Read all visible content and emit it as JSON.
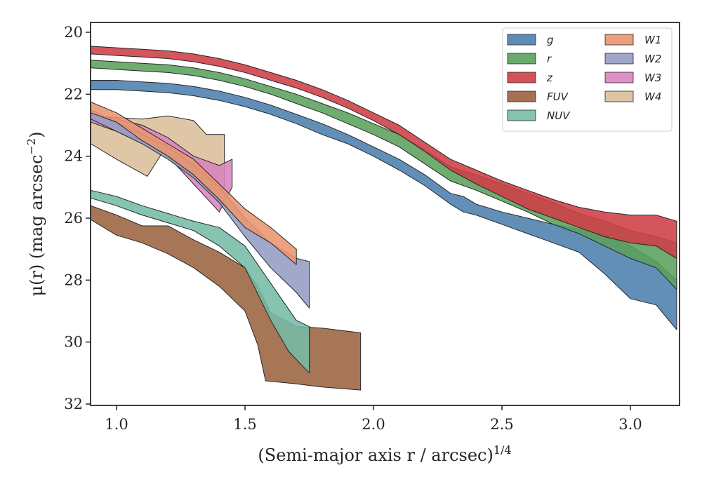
{
  "chart_data": {
    "type": "area",
    "xlabel": "(Semi-major axis r / arcsec)",
    "xlabel_exponent": "1/4",
    "ylabel": "μ(r) (mag arcsec",
    "ylabel_exponent": "−2",
    "xlim": [
      0.9,
      3.18
    ],
    "ylim": [
      32,
      19.75
    ],
    "y_inverted": true,
    "xticks": [
      1.0,
      1.5,
      2.0,
      2.5,
      3.0
    ],
    "xtick_labels": [
      "1.0",
      "1.5",
      "2.0",
      "2.5",
      "3.0"
    ],
    "yticks": [
      20,
      22,
      24,
      26,
      28,
      30,
      32
    ],
    "ytick_labels": [
      "20",
      "22",
      "24",
      "26",
      "28",
      "30",
      "32"
    ],
    "grid": false,
    "legend": {
      "position": "top-right",
      "columns": 2
    },
    "series": [
      {
        "name": "g",
        "color": "#4c7fae",
        "upper": [
          [
            0.9,
            21.55
          ],
          [
            1.0,
            21.55
          ],
          [
            1.1,
            21.6
          ],
          [
            1.2,
            21.65
          ],
          [
            1.3,
            21.75
          ],
          [
            1.4,
            21.9
          ],
          [
            1.5,
            22.1
          ],
          [
            1.6,
            22.35
          ],
          [
            1.7,
            22.65
          ],
          [
            1.8,
            22.95
          ],
          [
            1.9,
            23.3
          ],
          [
            2.0,
            23.7
          ],
          [
            2.1,
            24.1
          ],
          [
            2.2,
            24.6
          ],
          [
            2.3,
            25.2
          ],
          [
            2.35,
            25.3
          ],
          [
            2.4,
            25.55
          ],
          [
            2.5,
            25.8
          ],
          [
            2.6,
            26.0
          ],
          [
            2.7,
            26.2
          ],
          [
            2.8,
            26.35
          ],
          [
            2.9,
            26.5
          ],
          [
            3.0,
            26.9
          ],
          [
            3.1,
            27.4
          ],
          [
            3.18,
            28.0
          ]
        ],
        "lower": [
          [
            0.9,
            21.85
          ],
          [
            1.0,
            21.85
          ],
          [
            1.1,
            21.9
          ],
          [
            1.2,
            21.95
          ],
          [
            1.3,
            22.05
          ],
          [
            1.4,
            22.2
          ],
          [
            1.5,
            22.4
          ],
          [
            1.6,
            22.65
          ],
          [
            1.7,
            22.95
          ],
          [
            1.8,
            23.3
          ],
          [
            1.9,
            23.6
          ],
          [
            2.0,
            24.0
          ],
          [
            2.1,
            24.45
          ],
          [
            2.2,
            24.95
          ],
          [
            2.3,
            25.55
          ],
          [
            2.35,
            25.8
          ],
          [
            2.4,
            25.9
          ],
          [
            2.5,
            26.2
          ],
          [
            2.6,
            26.5
          ],
          [
            2.7,
            26.8
          ],
          [
            2.8,
            27.1
          ],
          [
            2.9,
            27.8
          ],
          [
            3.0,
            28.6
          ],
          [
            3.1,
            28.8
          ],
          [
            3.18,
            29.6
          ]
        ]
      },
      {
        "name": "r",
        "color": "#5aa15c",
        "upper": [
          [
            0.9,
            20.9
          ],
          [
            1.0,
            20.95
          ],
          [
            1.1,
            21.0
          ],
          [
            1.2,
            21.05
          ],
          [
            1.3,
            21.15
          ],
          [
            1.4,
            21.3
          ],
          [
            1.5,
            21.5
          ],
          [
            1.6,
            21.75
          ],
          [
            1.7,
            22.0
          ],
          [
            1.8,
            22.3
          ],
          [
            1.9,
            22.6
          ],
          [
            2.0,
            22.95
          ],
          [
            2.1,
            23.3
          ],
          [
            2.2,
            23.8
          ],
          [
            2.3,
            24.35
          ],
          [
            2.4,
            24.6
          ],
          [
            2.5,
            24.9
          ],
          [
            2.6,
            25.2
          ],
          [
            2.7,
            25.5
          ],
          [
            2.8,
            25.85
          ],
          [
            2.9,
            26.1
          ],
          [
            3.0,
            26.4
          ],
          [
            3.1,
            26.6
          ],
          [
            3.18,
            26.8
          ]
        ],
        "lower": [
          [
            0.9,
            21.15
          ],
          [
            1.0,
            21.2
          ],
          [
            1.1,
            21.25
          ],
          [
            1.2,
            21.3
          ],
          [
            1.3,
            21.4
          ],
          [
            1.4,
            21.55
          ],
          [
            1.5,
            21.75
          ],
          [
            1.6,
            22.0
          ],
          [
            1.7,
            22.3
          ],
          [
            1.8,
            22.6
          ],
          [
            1.9,
            22.95
          ],
          [
            2.0,
            23.3
          ],
          [
            2.1,
            23.7
          ],
          [
            2.2,
            24.25
          ],
          [
            2.3,
            24.8
          ],
          [
            2.4,
            25.1
          ],
          [
            2.5,
            25.45
          ],
          [
            2.6,
            25.8
          ],
          [
            2.7,
            26.2
          ],
          [
            2.8,
            26.5
          ],
          [
            2.9,
            26.9
          ],
          [
            3.0,
            27.3
          ],
          [
            3.1,
            27.6
          ],
          [
            3.18,
            28.3
          ]
        ]
      },
      {
        "name": "z",
        "color": "#cf3e45",
        "upper": [
          [
            0.9,
            20.45
          ],
          [
            1.0,
            20.5
          ],
          [
            1.1,
            20.55
          ],
          [
            1.2,
            20.6
          ],
          [
            1.3,
            20.7
          ],
          [
            1.4,
            20.85
          ],
          [
            1.5,
            21.05
          ],
          [
            1.6,
            21.3
          ],
          [
            1.7,
            21.55
          ],
          [
            1.8,
            21.85
          ],
          [
            1.9,
            22.2
          ],
          [
            2.0,
            22.6
          ],
          [
            2.1,
            23.0
          ],
          [
            2.2,
            23.55
          ],
          [
            2.3,
            24.1
          ],
          [
            2.4,
            24.45
          ],
          [
            2.5,
            24.8
          ],
          [
            2.6,
            25.1
          ],
          [
            2.7,
            25.4
          ],
          [
            2.8,
            25.65
          ],
          [
            2.9,
            25.8
          ],
          [
            3.0,
            25.9
          ],
          [
            3.1,
            25.9
          ],
          [
            3.18,
            26.1
          ]
        ],
        "lower": [
          [
            0.9,
            20.7
          ],
          [
            1.0,
            20.75
          ],
          [
            1.1,
            20.8
          ],
          [
            1.2,
            20.85
          ],
          [
            1.3,
            20.95
          ],
          [
            1.4,
            21.1
          ],
          [
            1.5,
            21.3
          ],
          [
            1.6,
            21.55
          ],
          [
            1.7,
            21.8
          ],
          [
            1.8,
            22.1
          ],
          [
            1.9,
            22.45
          ],
          [
            2.0,
            22.85
          ],
          [
            2.1,
            23.3
          ],
          [
            2.2,
            23.85
          ],
          [
            2.3,
            24.45
          ],
          [
            2.4,
            24.9
          ],
          [
            2.5,
            25.3
          ],
          [
            2.6,
            25.7
          ],
          [
            2.7,
            26.0
          ],
          [
            2.8,
            26.3
          ],
          [
            2.9,
            26.6
          ],
          [
            3.0,
            26.8
          ],
          [
            3.1,
            26.9
          ],
          [
            3.18,
            27.3
          ]
        ]
      },
      {
        "name": "FUV",
        "color": "#9a6340",
        "upper": [
          [
            0.9,
            25.6
          ],
          [
            1.0,
            25.9
          ],
          [
            1.1,
            26.25
          ],
          [
            1.2,
            26.25
          ],
          [
            1.3,
            26.7
          ],
          [
            1.4,
            27.1
          ],
          [
            1.5,
            27.6
          ],
          [
            1.55,
            28.2
          ],
          [
            1.6,
            29.05
          ],
          [
            1.7,
            29.5
          ],
          [
            1.8,
            29.55
          ],
          [
            1.95,
            29.7
          ]
        ],
        "lower": [
          [
            0.9,
            26.05
          ],
          [
            1.0,
            26.55
          ],
          [
            1.1,
            26.8
          ],
          [
            1.2,
            27.15
          ],
          [
            1.3,
            27.6
          ],
          [
            1.4,
            28.2
          ],
          [
            1.5,
            29.0
          ],
          [
            1.55,
            30.1
          ],
          [
            1.58,
            31.25
          ],
          [
            1.7,
            31.35
          ],
          [
            1.8,
            31.45
          ],
          [
            1.95,
            31.55
          ]
        ]
      },
      {
        "name": "NUV",
        "color": "#75bca6",
        "upper": [
          [
            0.9,
            25.1
          ],
          [
            1.0,
            25.3
          ],
          [
            1.1,
            25.6
          ],
          [
            1.2,
            25.85
          ],
          [
            1.3,
            26.1
          ],
          [
            1.4,
            26.3
          ],
          [
            1.5,
            26.9
          ],
          [
            1.6,
            28.1
          ],
          [
            1.7,
            29.3
          ],
          [
            1.75,
            29.5
          ]
        ],
        "lower": [
          [
            0.9,
            25.35
          ],
          [
            1.0,
            25.6
          ],
          [
            1.1,
            25.9
          ],
          [
            1.2,
            26.15
          ],
          [
            1.3,
            26.4
          ],
          [
            1.4,
            26.9
          ],
          [
            1.5,
            27.6
          ],
          [
            1.6,
            29.3
          ],
          [
            1.67,
            30.3
          ],
          [
            1.75,
            31.0
          ]
        ]
      },
      {
        "name": "W1",
        "color": "#e9956f",
        "upper": [
          [
            0.9,
            22.25
          ],
          [
            1.0,
            22.6
          ],
          [
            1.1,
            23.1
          ],
          [
            1.2,
            23.6
          ],
          [
            1.3,
            24.1
          ],
          [
            1.4,
            24.9
          ],
          [
            1.5,
            25.7
          ],
          [
            1.6,
            26.3
          ],
          [
            1.7,
            27.0
          ]
        ],
        "lower": [
          [
            0.9,
            22.6
          ],
          [
            1.0,
            22.9
          ],
          [
            1.1,
            23.5
          ],
          [
            1.2,
            24.0
          ],
          [
            1.3,
            24.6
          ],
          [
            1.4,
            25.4
          ],
          [
            1.5,
            26.3
          ],
          [
            1.6,
            26.8
          ],
          [
            1.7,
            27.5
          ]
        ]
      },
      {
        "name": "W2",
        "color": "#939dc4",
        "upper": [
          [
            0.9,
            22.5
          ],
          [
            1.0,
            22.9
          ],
          [
            1.1,
            23.3
          ],
          [
            1.2,
            23.7
          ],
          [
            1.3,
            24.3
          ],
          [
            1.4,
            25.0
          ],
          [
            1.5,
            26.0
          ],
          [
            1.6,
            26.8
          ],
          [
            1.7,
            27.3
          ],
          [
            1.75,
            27.4
          ]
        ],
        "lower": [
          [
            0.9,
            22.8
          ],
          [
            1.0,
            23.2
          ],
          [
            1.1,
            23.6
          ],
          [
            1.2,
            24.1
          ],
          [
            1.3,
            24.7
          ],
          [
            1.4,
            25.5
          ],
          [
            1.5,
            26.6
          ],
          [
            1.6,
            27.6
          ],
          [
            1.7,
            28.4
          ],
          [
            1.75,
            28.9
          ]
        ]
      },
      {
        "name": "W3",
        "color": "#d884bf",
        "upper": [
          [
            0.9,
            22.6
          ],
          [
            1.0,
            22.8
          ],
          [
            1.1,
            23.0
          ],
          [
            1.2,
            23.4
          ],
          [
            1.3,
            24.0
          ],
          [
            1.4,
            24.3
          ],
          [
            1.45,
            24.1
          ]
        ],
        "lower": [
          [
            0.9,
            22.9
          ],
          [
            1.0,
            23.2
          ],
          [
            1.1,
            23.5
          ],
          [
            1.2,
            24.0
          ],
          [
            1.3,
            24.9
          ],
          [
            1.4,
            25.8
          ],
          [
            1.45,
            25.0
          ]
        ]
      },
      {
        "name": "W4",
        "color": "#dbbe9a",
        "upper": [
          [
            0.9,
            22.7
          ],
          [
            1.0,
            22.75
          ],
          [
            1.1,
            22.8
          ],
          [
            1.2,
            22.7
          ],
          [
            1.3,
            22.85
          ],
          [
            1.35,
            23.3
          ],
          [
            1.42,
            23.3
          ]
        ],
        "lower": [
          [
            0.9,
            23.6
          ],
          [
            1.0,
            24.1
          ],
          [
            1.12,
            24.65
          ],
          [
            1.2,
            23.6
          ],
          [
            1.3,
            24.1
          ],
          [
            1.35,
            24.9
          ],
          [
            1.42,
            25.0
          ]
        ]
      }
    ]
  }
}
